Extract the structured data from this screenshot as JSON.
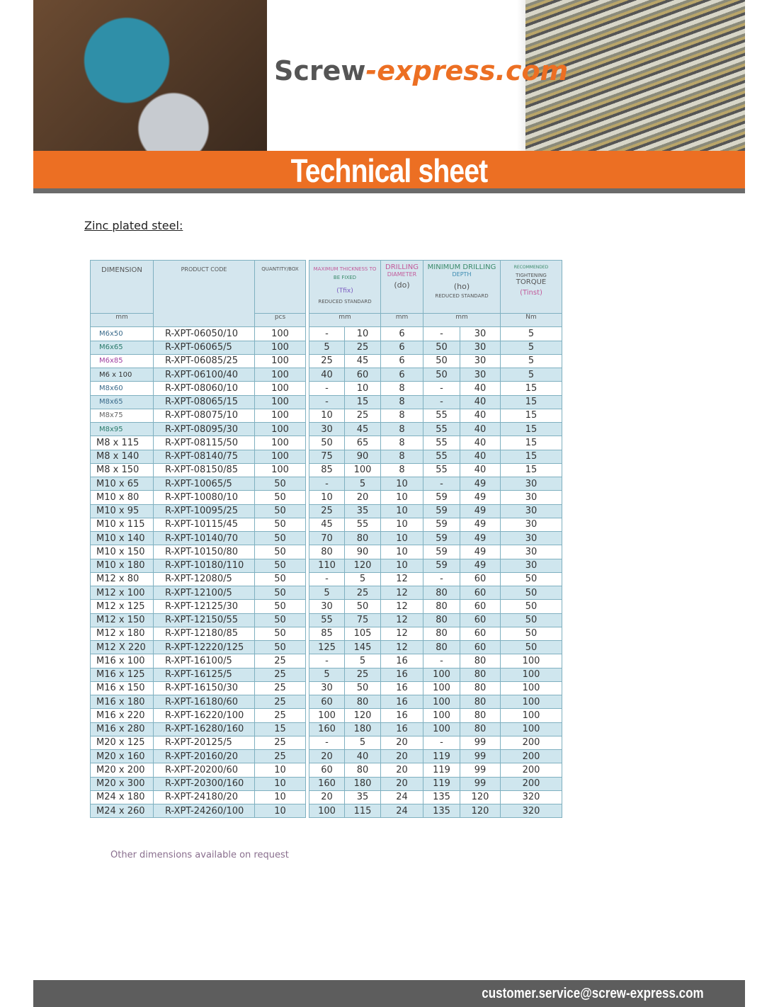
{
  "header": {
    "logo_main": "Screw",
    "logo_accent": "-express.com",
    "title": "Technical sheet"
  },
  "subtitle": "Zinc plated steel:",
  "table": {
    "h_dimension": "DIMENSION",
    "h_code": "PRODUCT CODE",
    "h_qty": "QUANTITY/BOX",
    "h_tfix_1": "MAXIMUM THICKNESS TO",
    "h_tfix_2": "BE FIXED",
    "h_tfix_3": "(Tfix)",
    "h_do_1": "DRILLING",
    "h_do_2": "DIAMETER",
    "h_do_3": "(do)",
    "h_ho_1": "MINIMUM DRILLING",
    "h_ho_2": "DEPTH",
    "h_ho_3": "(ho)",
    "h_t_1": "RECOMMENDED",
    "h_t_2": "TIGHTENING",
    "h_t_3": "TORQUE",
    "h_t_4": "(Tinst)",
    "reduced_standard": "REDUCED STANDARD",
    "u_mm": "mm",
    "u_pcs": "pcs",
    "u_nm": "Nm",
    "rows": [
      [
        "M6x50",
        "R-XPT-06050/10",
        "100",
        "-",
        "10",
        "6",
        "-",
        "30",
        "5"
      ],
      [
        "M6x65",
        "R-XPT-06065/5",
        "100",
        "5",
        "25",
        "6",
        "50",
        "30",
        "5"
      ],
      [
        "M6x85",
        "R-XPT-06085/25",
        "100",
        "25",
        "45",
        "6",
        "50",
        "30",
        "5"
      ],
      [
        "M6 x 100",
        "R-XPT-06100/40",
        "100",
        "40",
        "60",
        "6",
        "50",
        "30",
        "5"
      ],
      [
        "M8x60",
        "R-XPT-08060/10",
        "100",
        "-",
        "10",
        "8",
        "-",
        "40",
        "15"
      ],
      [
        "M8x65",
        "R-XPT-08065/15",
        "100",
        "-",
        "15",
        "8",
        "-",
        "40",
        "15"
      ],
      [
        "M8x75",
        "R-XPT-08075/10",
        "100",
        "10",
        "25",
        "8",
        "55",
        "40",
        "15"
      ],
      [
        "M8x95",
        "R-XPT-08095/30",
        "100",
        "30",
        "45",
        "8",
        "55",
        "40",
        "15"
      ],
      [
        "M8 x 115",
        "R-XPT-08115/50",
        "100",
        "50",
        "65",
        "8",
        "55",
        "40",
        "15"
      ],
      [
        "M8 x 140",
        "R-XPT-08140/75",
        "100",
        "75",
        "90",
        "8",
        "55",
        "40",
        "15"
      ],
      [
        "M8 x 150",
        "R-XPT-08150/85",
        "100",
        "85",
        "100",
        "8",
        "55",
        "40",
        "15"
      ],
      [
        "M10 x 65",
        "R-XPT-10065/5",
        "50",
        "-",
        "5",
        "10",
        "-",
        "49",
        "30"
      ],
      [
        "M10 x 80",
        "R-XPT-10080/10",
        "50",
        "10",
        "20",
        "10",
        "59",
        "49",
        "30"
      ],
      [
        "M10 x 95",
        "R-XPT-10095/25",
        "50",
        "25",
        "35",
        "10",
        "59",
        "49",
        "30"
      ],
      [
        "M10 x 115",
        "R-XPT-10115/45",
        "50",
        "45",
        "55",
        "10",
        "59",
        "49",
        "30"
      ],
      [
        "M10 x 140",
        "R-XPT-10140/70",
        "50",
        "70",
        "80",
        "10",
        "59",
        "49",
        "30"
      ],
      [
        "M10 x 150",
        "R-XPT-10150/80",
        "50",
        "80",
        "90",
        "10",
        "59",
        "49",
        "30"
      ],
      [
        "M10 x 180",
        "R-XPT-10180/110",
        "50",
        "110",
        "120",
        "10",
        "59",
        "49",
        "30"
      ],
      [
        "M12 x 80",
        "R-XPT-12080/5",
        "50",
        "-",
        "5",
        "12",
        "-",
        "60",
        "50"
      ],
      [
        "M12 x 100",
        "R-XPT-12100/5",
        "50",
        "5",
        "25",
        "12",
        "80",
        "60",
        "50"
      ],
      [
        "M12 x 125",
        "R-XPT-12125/30",
        "50",
        "30",
        "50",
        "12",
        "80",
        "60",
        "50"
      ],
      [
        "M12 x 150",
        "R-XPT-12150/55",
        "50",
        "55",
        "75",
        "12",
        "80",
        "60",
        "50"
      ],
      [
        "M12 x 180",
        "R-XPT-12180/85",
        "50",
        "85",
        "105",
        "12",
        "80",
        "60",
        "50"
      ],
      [
        "M12 X 220",
        "R-XPT-12220/125",
        "50",
        "125",
        "145",
        "12",
        "80",
        "60",
        "50"
      ],
      [
        "M16 x 100",
        "R-XPT-16100/5",
        "25",
        "-",
        "5",
        "16",
        "-",
        "80",
        "100"
      ],
      [
        "M16 x 125",
        "R-XPT-16125/5",
        "25",
        "5",
        "25",
        "16",
        "100",
        "80",
        "100"
      ],
      [
        "M16 x 150",
        "R-XPT-16150/30",
        "25",
        "30",
        "50",
        "16",
        "100",
        "80",
        "100"
      ],
      [
        "M16 x 180",
        "R-XPT-16180/60",
        "25",
        "60",
        "80",
        "16",
        "100",
        "80",
        "100"
      ],
      [
        "M16 x 220",
        "R-XPT-16220/100",
        "25",
        "100",
        "120",
        "16",
        "100",
        "80",
        "100"
      ],
      [
        "M16 x 280",
        "R-XPT-16280/160",
        "15",
        "160",
        "180",
        "16",
        "100",
        "80",
        "100"
      ],
      [
        "M20 x 125",
        "R-XPT-20125/5",
        "25",
        "-",
        "5",
        "20",
        "-",
        "99",
        "200"
      ],
      [
        "M20 x 160",
        "R-XPT-20160/20",
        "25",
        "20",
        "40",
        "20",
        "119",
        "99",
        "200"
      ],
      [
        "M20 x 200",
        "R-XPT-20200/60",
        "10",
        "60",
        "80",
        "20",
        "119",
        "99",
        "200"
      ],
      [
        "M20 x 300",
        "R-XPT-20300/160",
        "10",
        "160",
        "180",
        "20",
        "119",
        "99",
        "200"
      ],
      [
        "M24 x 180",
        "R-XPT-24180/20",
        "10",
        "20",
        "35",
        "24",
        "135",
        "120",
        "320"
      ],
      [
        "M24 x 260",
        "R-XPT-24260/100",
        "10",
        "100",
        "115",
        "24",
        "135",
        "120",
        "320"
      ]
    ]
  },
  "note": "Other dimensions available on request",
  "footer": {
    "email": "customer.service@screw-express.com"
  },
  "colors": {
    "accent": "#ec6f23",
    "row_alt": "#cfe6ee",
    "footer": "#5d5d5d"
  }
}
